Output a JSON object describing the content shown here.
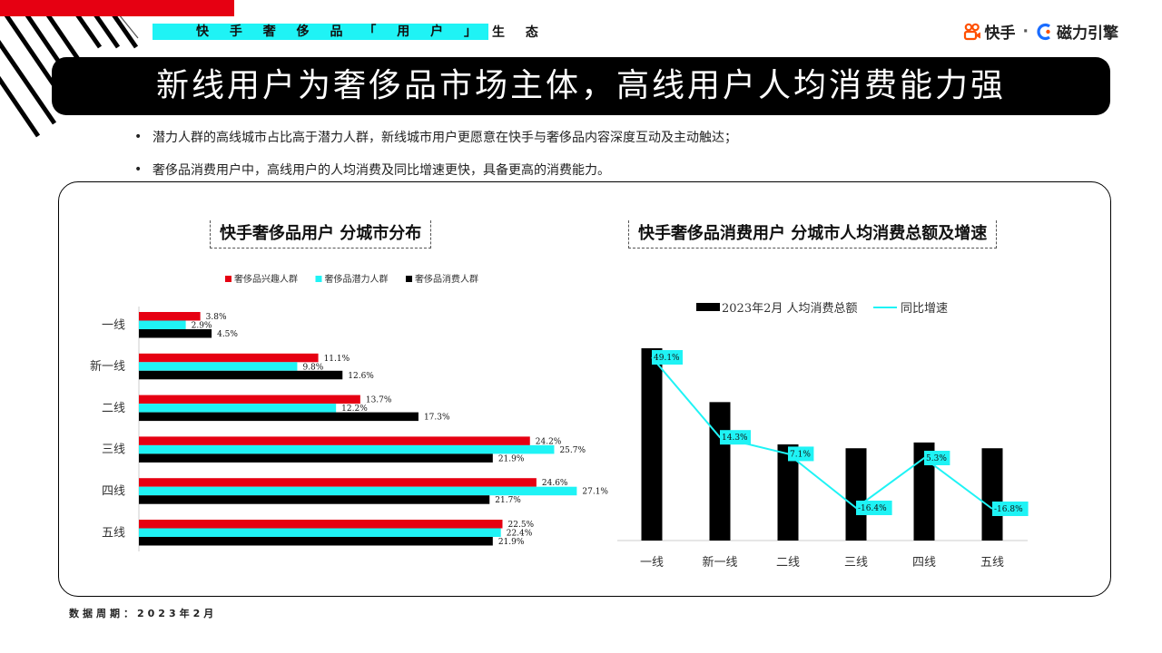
{
  "header": {
    "section_highlight": "快 手 奢 侈 品 「 用 户 」",
    "section_rest": "生 态",
    "brand_kuaishou": "快手",
    "brand_separator": "·",
    "brand_cili": "磁力引擎"
  },
  "title": "新线用户为奢侈品市场主体，高线用户人均消费能力强",
  "bullets": [
    "潜力人群的高线城市占比高于潜力人群，新线城市用户更愿意在快手与奢侈品内容深度互动及主动触达；",
    "奢侈品消费用户中，高线用户的人均消费及同比增速更快，具备更高的消费能力。"
  ],
  "footer": "数据周期：2023年2月",
  "colors": {
    "red": "#e60012",
    "cyan": "#1ff3f5",
    "black": "#000000"
  },
  "chart_data": [
    {
      "type": "bar",
      "orientation": "horizontal",
      "title": "快手奢侈品用户 分城市分布",
      "categories": [
        "一线",
        "新一线",
        "二线",
        "三线",
        "四线",
        "五线"
      ],
      "series": [
        {
          "name": "奢侈品兴趣人群",
          "color": "#e60012",
          "values": [
            3.8,
            11.1,
            13.7,
            24.2,
            24.6,
            22.5
          ],
          "labels": [
            "3.8%",
            "11.1%",
            "13.7%",
            "24.2%",
            "24.6%",
            "22.5%"
          ]
        },
        {
          "name": "奢侈品潜力人群",
          "color": "#1ff3f5",
          "values": [
            2.9,
            9.8,
            12.2,
            25.7,
            27.1,
            22.4
          ],
          "labels": [
            "2.9%",
            "9.8%",
            "12.2%",
            "25.7%",
            "27.1%",
            "22.4%"
          ]
        },
        {
          "name": "奢侈品消费人群",
          "color": "#000000",
          "values": [
            4.5,
            12.6,
            17.3,
            21.9,
            21.7,
            21.9
          ],
          "labels": [
            "4.5%",
            "12.6%",
            "17.3%",
            "21.9%",
            "21.7%",
            "21.9%"
          ]
        }
      ],
      "legend": "top",
      "grid": false
    },
    {
      "type": "bar+line",
      "title": "快手奢侈品消费用户 分城市人均消费总额及增速",
      "categories": [
        "一线",
        "新一线",
        "二线",
        "三线",
        "四线",
        "五线"
      ],
      "bar_series": {
        "name": "2023年2月 人均消费总额",
        "color": "#000000",
        "relative_values": [
          100,
          72,
          50,
          48,
          51,
          48
        ]
      },
      "line_series": {
        "name": "同比增速",
        "color": "#1ff3f5",
        "values": [
          49.1,
          14.3,
          7.1,
          -16.4,
          5.3,
          -16.8
        ],
        "labels": [
          "49.1%",
          "14.3%",
          "7.1%",
          "-16.4%",
          "5.3%",
          "-16.8%"
        ]
      },
      "legend": "top",
      "grid": false
    }
  ]
}
